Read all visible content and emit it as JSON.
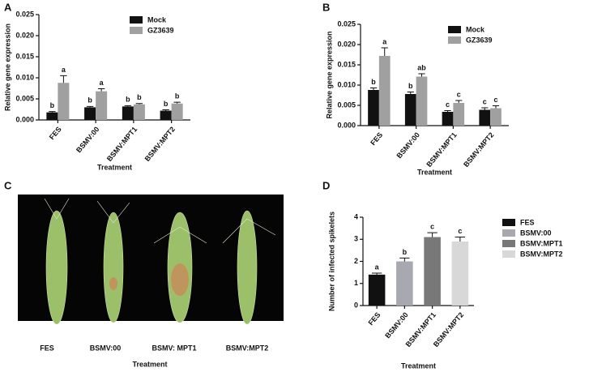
{
  "chart_data": [
    {
      "type": "bar",
      "panel_label": "A",
      "xlabel": "Treatment",
      "ylabel": "Relative gene expression",
      "categories": [
        "FES",
        "BSMV:00",
        "BSMV:MPT1",
        "BSMV:MPT2"
      ],
      "series": [
        {
          "name": "Mock",
          "color": "#111111",
          "values": [
            0.0018,
            0.003,
            0.0032,
            0.0022
          ],
          "errors": [
            0.0002,
            0.0002,
            0.0002,
            0.0002
          ],
          "letters": [
            "b",
            "b",
            "b",
            "b"
          ]
        },
        {
          "name": "GZ3639",
          "color": "#a0a0a0",
          "values": [
            0.0088,
            0.0068,
            0.0037,
            0.0039
          ],
          "errors": [
            0.0017,
            0.0006,
            0.0002,
            0.0003
          ],
          "letters": [
            "a",
            "a",
            "b",
            "b"
          ]
        }
      ],
      "ylim": [
        0,
        0.025
      ],
      "yticks": [
        {
          "value": 0,
          "label": "0.000"
        },
        {
          "value": 0.005,
          "label": "0.005"
        },
        {
          "value": 0.01,
          "label": "0.010"
        },
        {
          "value": 0.015,
          "label": "0.015"
        },
        {
          "value": 0.02,
          "label": "0.020"
        },
        {
          "value": 0.025,
          "label": "0.025"
        }
      ],
      "legend": "upper right"
    },
    {
      "type": "bar",
      "panel_label": "B",
      "xlabel": "Treatment",
      "ylabel": "Relative gene expression",
      "categories": [
        "FES",
        "BSMV:00",
        "BSMV:MPT1",
        "BSMV:MPT2"
      ],
      "series": [
        {
          "name": "Mock",
          "color": "#111111",
          "values": [
            0.0088,
            0.0078,
            0.0034,
            0.0039
          ],
          "errors": [
            0.0005,
            0.0005,
            0.0003,
            0.0005
          ],
          "letters": [
            "b",
            "b",
            "c",
            "c"
          ]
        },
        {
          "name": "GZ3639",
          "color": "#a0a0a0",
          "values": [
            0.0172,
            0.0121,
            0.0056,
            0.0043
          ],
          "errors": [
            0.002,
            0.0007,
            0.0006,
            0.0006
          ],
          "letters": [
            "a",
            "ab",
            "c",
            "c"
          ]
        }
      ],
      "ylim": [
        0,
        0.025
      ],
      "yticks": [
        {
          "value": 0,
          "label": "0.000"
        },
        {
          "value": 0.005,
          "label": "0.005"
        },
        {
          "value": 0.01,
          "label": "0.010"
        },
        {
          "value": 0.015,
          "label": "0.015"
        },
        {
          "value": 0.02,
          "label": "0.020"
        },
        {
          "value": 0.025,
          "label": "0.025"
        }
      ],
      "legend": "upper right"
    },
    {
      "type": "bar",
      "panel_label": "D",
      "xlabel": "Treatment",
      "ylabel": "Number of infected spikelets",
      "categories": [
        "FES",
        "BSMV:00",
        "BSMV:MPT1",
        "BSMV:MPT2"
      ],
      "values": [
        1.4,
        2.0,
        3.1,
        2.9
      ],
      "errors": [
        0.07,
        0.15,
        0.2,
        0.2
      ],
      "letters": [
        "a",
        "b",
        "c",
        "c"
      ],
      "colors": [
        "#111111",
        "#a8a8b0",
        "#787878",
        "#d8d8d8"
      ],
      "ylim": [
        0,
        4
      ],
      "yticks": [
        0,
        1,
        2,
        3,
        4
      ],
      "legend": "right"
    }
  ],
  "panel_c": {
    "panel_label": "C",
    "labels": [
      "FES",
      "BSMV:00",
      "BSMV: MPT1",
      "BSMV:MPT2"
    ],
    "xlabel": "Treatment"
  }
}
